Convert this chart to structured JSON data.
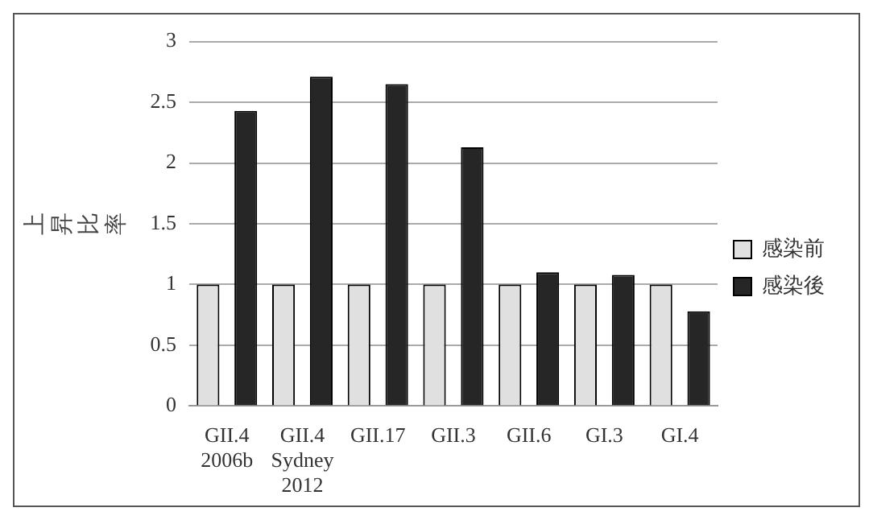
{
  "chart_data": {
    "type": "bar",
    "ylabel": "上昇比率",
    "categories": [
      "GII.4\n2006b",
      "GII.4\nSydney\n2012",
      "GII.17",
      "GII.3",
      "GII.6",
      "GI.3",
      "GI.4"
    ],
    "series": [
      {
        "name": "感染前",
        "color": "#e0e0e0",
        "values": [
          1,
          1,
          1,
          1,
          1,
          1,
          1
        ]
      },
      {
        "name": "感染後",
        "color": "#262626",
        "values": [
          2.43,
          2.71,
          2.65,
          2.13,
          1.1,
          1.08,
          0.78
        ]
      }
    ],
    "ylim": [
      0,
      3
    ],
    "yticks": [
      0,
      0.5,
      1,
      1.5,
      2,
      2.5,
      3
    ],
    "grid": "y",
    "legend": "right"
  }
}
